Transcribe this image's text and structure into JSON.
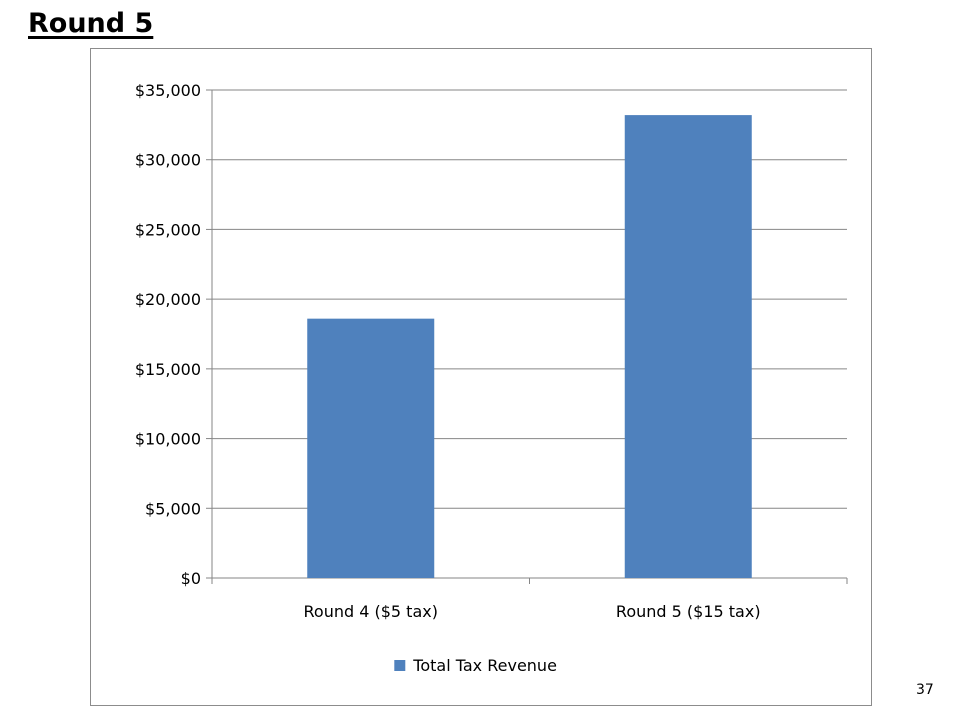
{
  "slide": {
    "title": "Round 5",
    "number": "37"
  },
  "colors": {
    "bar": "#4f81bd",
    "grid": "#868686",
    "axis": "#868686",
    "text": "#000000"
  },
  "chart_data": {
    "type": "bar",
    "categories": [
      "Round 4 ($5 tax)",
      "Round 5 ($15 tax)"
    ],
    "series": [
      {
        "name": "Total Tax Revenue",
        "values": [
          18600,
          33200
        ]
      }
    ],
    "title": "",
    "xlabel": "",
    "ylabel": "",
    "ylim": [
      0,
      35000
    ],
    "yticks": [
      0,
      5000,
      10000,
      15000,
      20000,
      25000,
      30000,
      35000
    ],
    "ytick_labels": [
      "$0",
      "$5,000",
      "$10,000",
      "$15,000",
      "$20,000",
      "$25,000",
      "$30,000",
      "$35,000"
    ],
    "grid": true,
    "legend": "bottom"
  }
}
